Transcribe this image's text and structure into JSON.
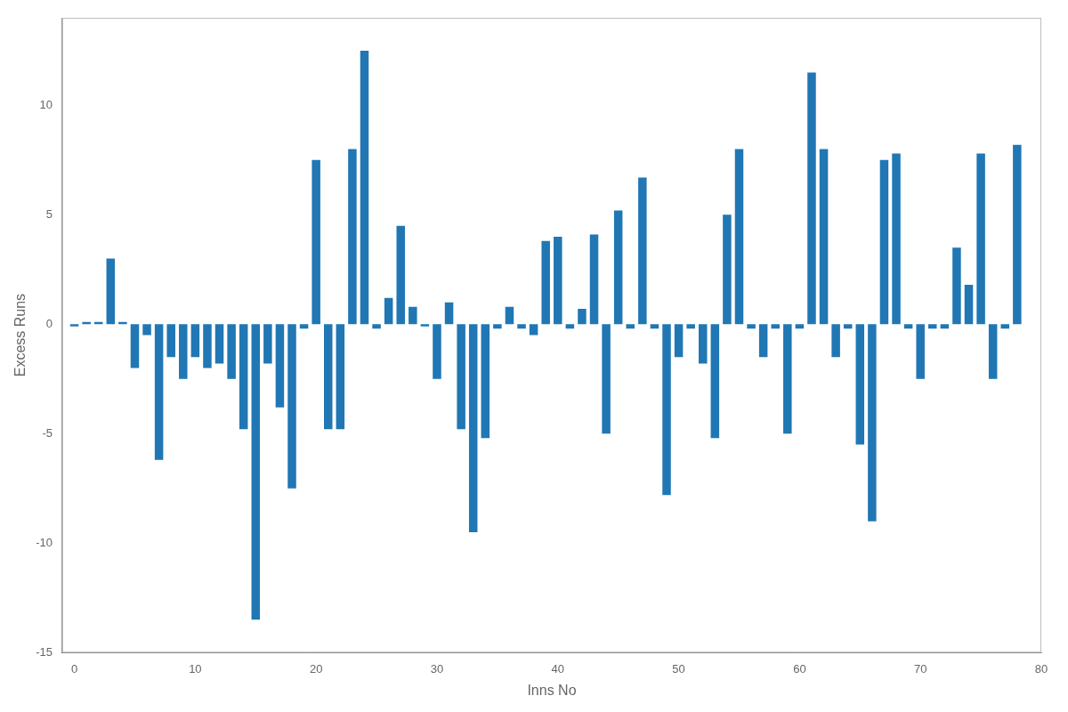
{
  "chart_data": {
    "type": "bar",
    "xlabel": "Inns No",
    "ylabel": "Excess Runs",
    "x": [
      0,
      1,
      2,
      3,
      4,
      5,
      6,
      7,
      8,
      9,
      10,
      11,
      12,
      13,
      14,
      15,
      16,
      17,
      18,
      19,
      20,
      21,
      22,
      23,
      24,
      25,
      26,
      27,
      28,
      29,
      30,
      31,
      32,
      33,
      34,
      35,
      36,
      37,
      38,
      39,
      40,
      41,
      42,
      43,
      44,
      45,
      46,
      47,
      48,
      49,
      50,
      51,
      52,
      53,
      54,
      55,
      56,
      57,
      58,
      59,
      60,
      61,
      62,
      63,
      64,
      65,
      66,
      67,
      68,
      69,
      70,
      71,
      72,
      73,
      74,
      75,
      76,
      77,
      78
    ],
    "values": [
      -0.1,
      0.1,
      0.1,
      3.0,
      0.1,
      -2.0,
      -0.5,
      -6.2,
      -1.5,
      -2.5,
      -1.5,
      -2.0,
      -1.8,
      -2.5,
      -4.8,
      -13.5,
      -1.8,
      -3.8,
      -7.5,
      -0.2,
      7.5,
      -4.8,
      -4.8,
      8.0,
      12.5,
      -0.2,
      1.2,
      4.5,
      0.8,
      -0.1,
      -2.5,
      1.0,
      -4.8,
      -9.5,
      -5.2,
      -0.2,
      0.8,
      -0.2,
      -0.5,
      3.8,
      4.0,
      -0.2,
      0.7,
      4.1,
      -5.0,
      5.2,
      -0.2,
      6.7,
      -0.2,
      -7.8,
      -1.5,
      -0.2,
      -1.8,
      -5.2,
      5.0,
      8.0,
      -0.2,
      -1.5,
      -0.2,
      -5.0,
      -0.2,
      11.5,
      8.0,
      -1.5,
      -0.2,
      -5.5,
      -9.0,
      7.5,
      7.8,
      -0.2,
      -2.5,
      -0.2,
      -0.2,
      3.5,
      1.8,
      7.8,
      -2.5,
      -0.2,
      8.2
    ],
    "color": "#2077b4",
    "xlim": [
      -1,
      80
    ],
    "ylim": [
      -15,
      14
    ],
    "xticks": [
      0,
      10,
      20,
      30,
      40,
      50,
      60,
      70,
      80
    ],
    "yticks": [
      -15,
      -10,
      -5,
      0,
      5,
      10
    ],
    "grid": false
  }
}
